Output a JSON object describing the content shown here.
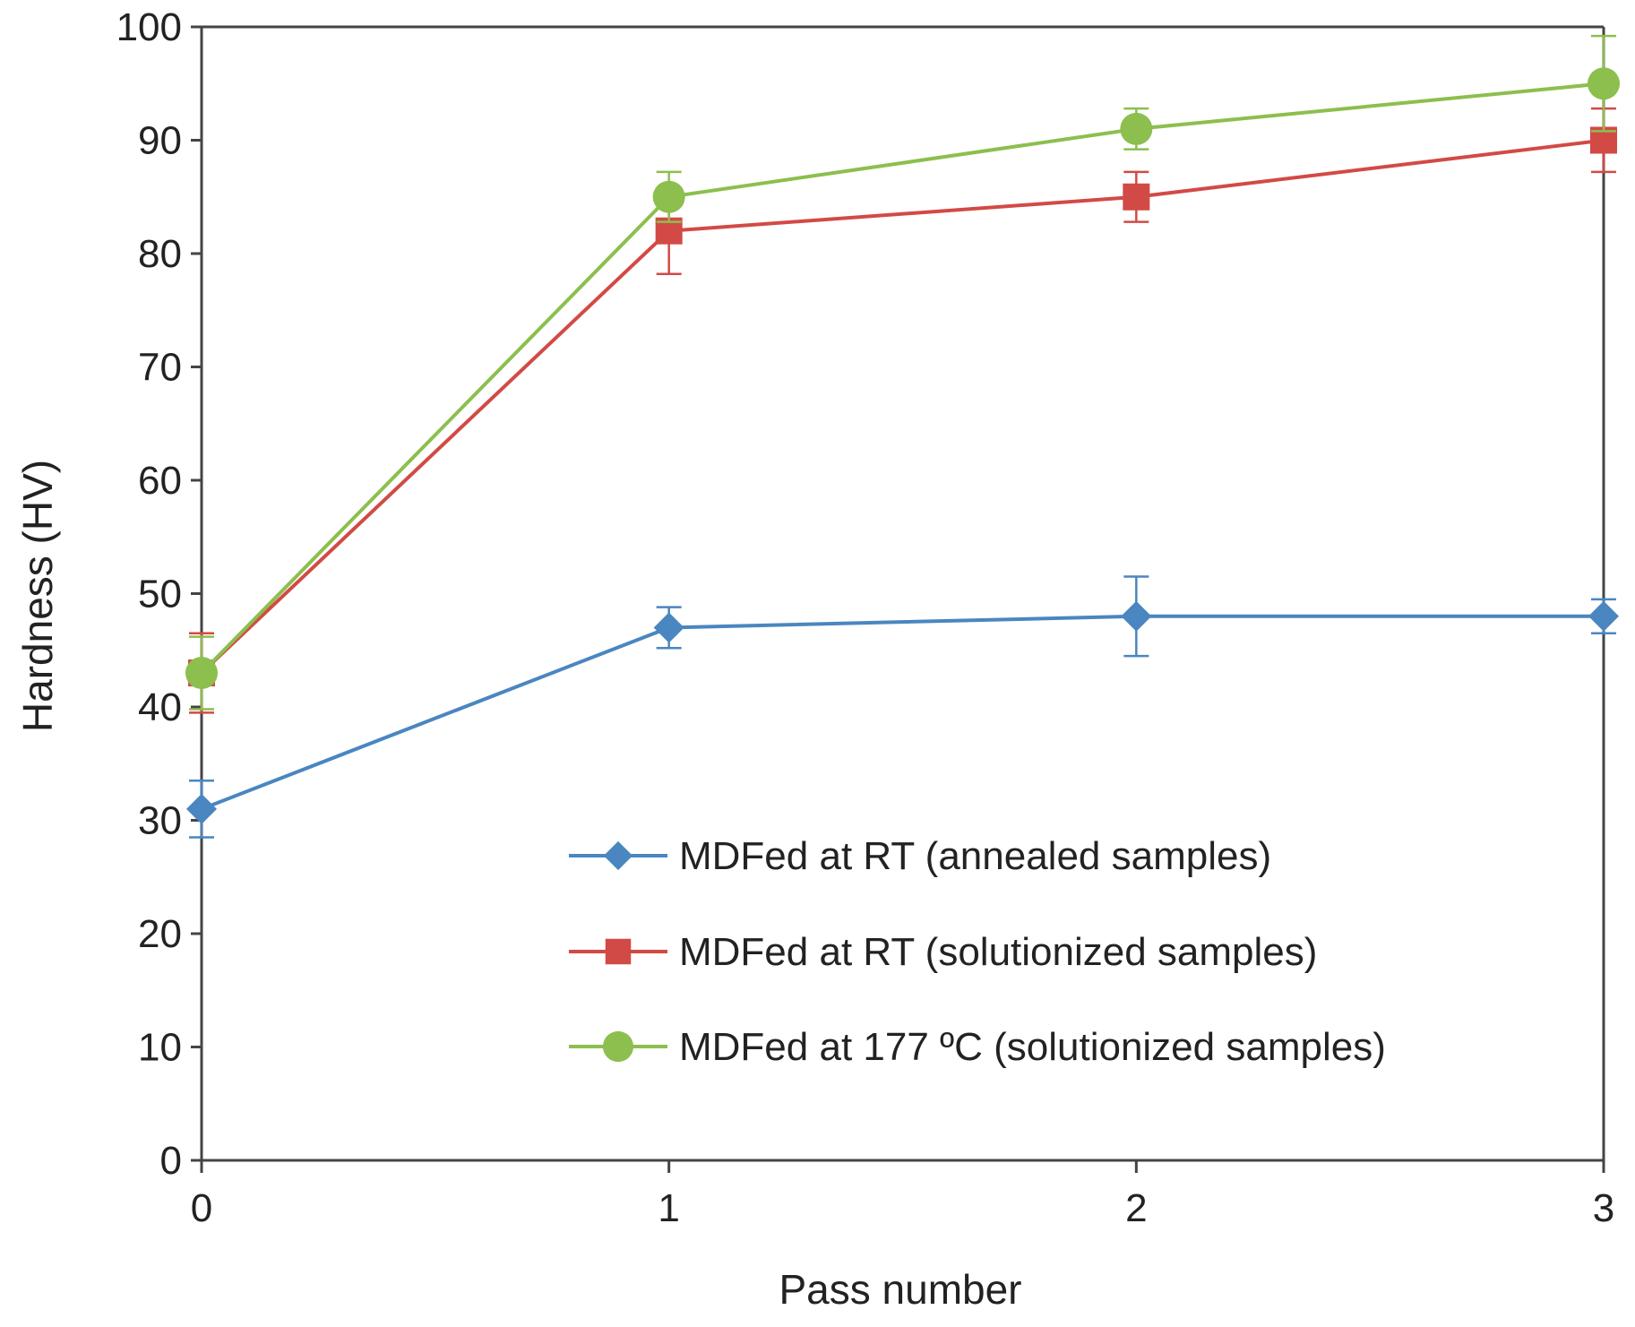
{
  "chart_data": {
    "type": "line",
    "title": "",
    "xlabel": "Pass number",
    "ylabel": "Hardness (HV)",
    "x": [
      0,
      1,
      2,
      3
    ],
    "xlim": [
      0,
      3
    ],
    "ylim": [
      0,
      100
    ],
    "x_ticks": [
      "0",
      "1",
      "2",
      "3"
    ],
    "y_ticks": [
      "0",
      "10",
      "20",
      "30",
      "40",
      "50",
      "60",
      "70",
      "80",
      "90",
      "100"
    ],
    "grid": false,
    "legend_position": "bottom-right",
    "series": [
      {
        "name": "MDFed  at RT (annealed samples)",
        "marker": "diamond",
        "color": "#4a86c0",
        "values": [
          31,
          47,
          48,
          48
        ],
        "error": [
          2.5,
          1.8,
          3.5,
          1.5
        ]
      },
      {
        "name": "MDFed  at RT (solutionized samples)",
        "marker": "square",
        "color": "#d24a45",
        "values": [
          43,
          82,
          85,
          90
        ],
        "error": [
          3.5,
          3.8,
          2.2,
          2.8
        ]
      },
      {
        "name": "MDFed  at 177 ºC (solutionized samples)",
        "marker": "circle",
        "color": "#8cbf4e",
        "values": [
          43,
          85,
          91,
          95
        ],
        "error": [
          3.2,
          2.2,
          1.8,
          4.2
        ]
      }
    ]
  }
}
